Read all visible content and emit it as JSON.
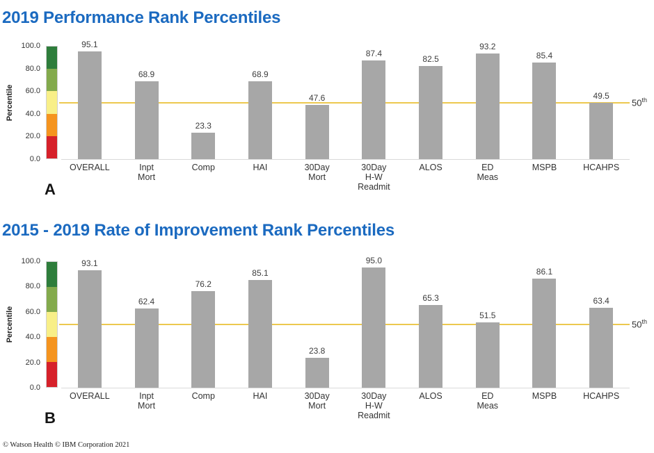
{
  "page": {
    "footer": "© Watson Health © IBM Corporation 2021",
    "colors": {
      "title_blue": "#1b6ac0",
      "bar_gray": "#a7a7a7",
      "reference_line_gold": "#ecc84f",
      "axis_baseline_gray": "#d9d9d9",
      "scale_bands": [
        {
          "from": 80,
          "to": 100,
          "color": "#2e7d3b"
        },
        {
          "from": 60,
          "to": 80,
          "color": "#83aa4c"
        },
        {
          "from": 40,
          "to": 60,
          "color": "#f8ef88"
        },
        {
          "from": 20,
          "to": 40,
          "color": "#f5941f"
        },
        {
          "from": 0,
          "to": 20,
          "color": "#d6212a"
        }
      ]
    }
  },
  "chart_data": [
    {
      "type": "bar",
      "title": "2019 Performance Rank Percentiles",
      "panel_label": "A",
      "ylabel": "Percentile",
      "xlabel": "",
      "ylim": [
        0,
        100
      ],
      "yticks": [
        100,
        80,
        60,
        40,
        20,
        0
      ],
      "grid": false,
      "legend": "none",
      "bar_color": "#a7a7a7",
      "categories": [
        "OVERALL",
        "Inpt Mort",
        "Comp",
        "HAI",
        "30Day Mort",
        "30Day H-W Readmit",
        "ALOS",
        "ED Meas",
        "MSPB",
        "HCAHPS"
      ],
      "category_lines": [
        [
          "OVERALL"
        ],
        [
          "Inpt",
          "Mort"
        ],
        [
          "Comp"
        ],
        [
          "HAI"
        ],
        [
          "30Day",
          "Mort"
        ],
        [
          "30Day",
          "H-W",
          "Readmit"
        ],
        [
          "ALOS"
        ],
        [
          "ED",
          "Meas"
        ],
        [
          "MSPB"
        ],
        [
          "HCAHPS"
        ]
      ],
      "values": [
        95.1,
        68.9,
        23.3,
        68.9,
        47.6,
        87.4,
        82.5,
        93.2,
        85.4,
        49.5
      ],
      "reference_line": {
        "value": 50,
        "label": "50",
        "label_sup": "th"
      }
    },
    {
      "type": "bar",
      "title": "2015 - 2019 Rate of Improvement Rank Percentiles",
      "panel_label": "B",
      "ylabel": "Percentile",
      "xlabel": "",
      "ylim": [
        0,
        100
      ],
      "yticks": [
        100,
        80,
        60,
        40,
        20,
        0
      ],
      "grid": false,
      "legend": "none",
      "bar_color": "#a7a7a7",
      "categories": [
        "OVERALL",
        "Inpt Mort",
        "Comp",
        "HAI",
        "30Day Mort",
        "30Day H-W Readmit",
        "ALOS",
        "ED Meas",
        "MSPB",
        "HCAHPS"
      ],
      "category_lines": [
        [
          "OVERALL"
        ],
        [
          "Inpt",
          "Mort"
        ],
        [
          "Comp"
        ],
        [
          "HAI"
        ],
        [
          "30Day",
          "Mort"
        ],
        [
          "30Day",
          "H-W",
          "Readmit"
        ],
        [
          "ALOS"
        ],
        [
          "ED",
          "Meas"
        ],
        [
          "MSPB"
        ],
        [
          "HCAHPS"
        ]
      ],
      "values": [
        93.1,
        62.4,
        76.2,
        85.1,
        23.8,
        95.0,
        65.3,
        51.5,
        86.1,
        63.4
      ],
      "reference_line": {
        "value": 50,
        "label": "50",
        "label_sup": "th"
      }
    }
  ]
}
